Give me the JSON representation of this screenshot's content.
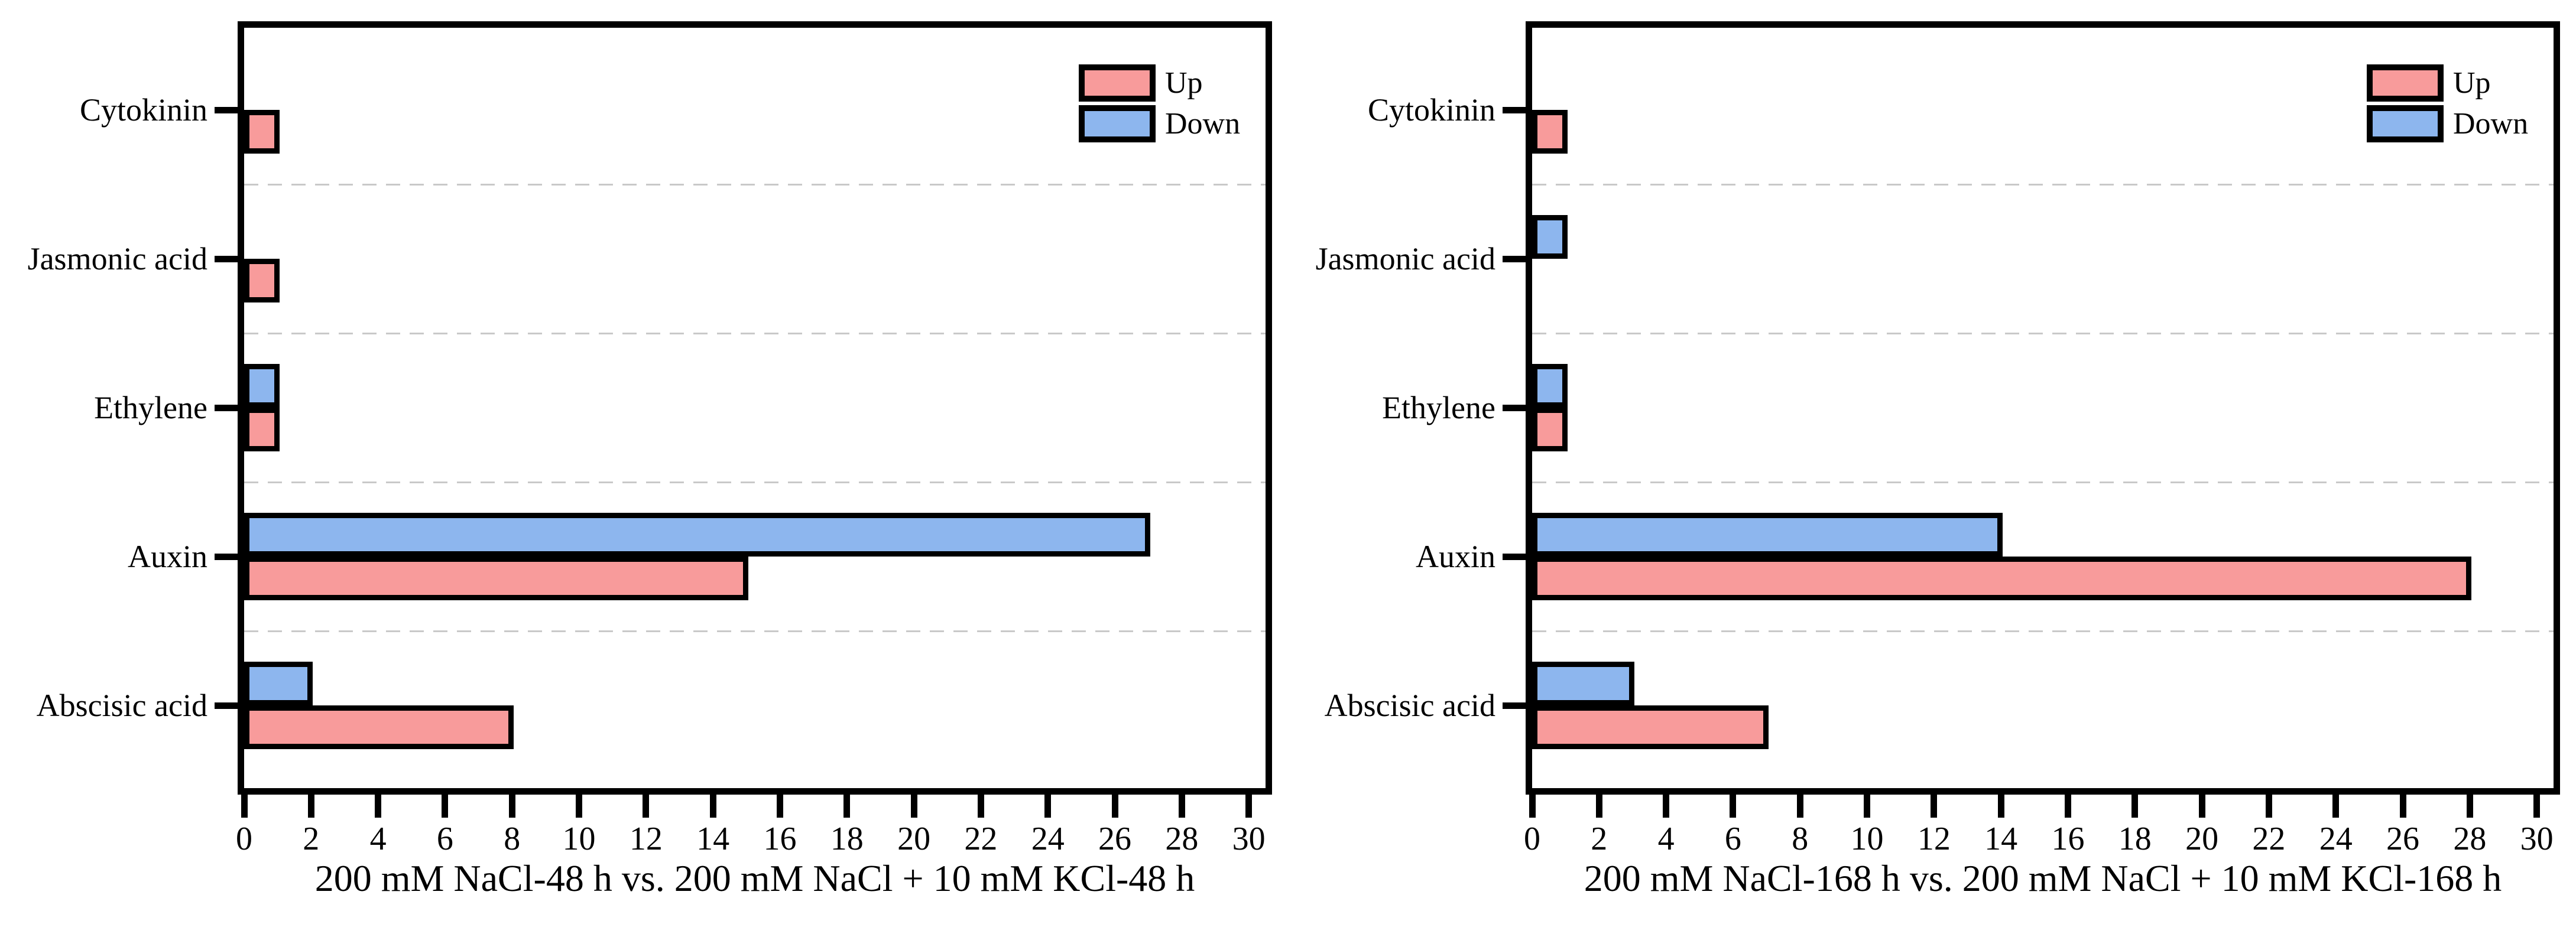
{
  "page": {
    "background": "#ffffff"
  },
  "colors": {
    "up": "#f89b9b",
    "down": "#8db6ee",
    "edge": "#000000",
    "axis": "#000000",
    "grid": "#c9c9c9",
    "text": "#000000"
  },
  "legend": {
    "position": "upper-right",
    "items": [
      {
        "label": "Up",
        "color_key": "up"
      },
      {
        "label": "Down",
        "color_key": "down"
      }
    ]
  },
  "chart_data": [
    {
      "type": "bar",
      "orientation": "horizontal",
      "title": "200 mM NaCl-48 h vs. 200 mM NaCl + 10 mM KCl-48 h",
      "category_order": "top-to-bottom",
      "categories": [
        "Cytokinin",
        "Jasmonic acid",
        "Ethylene",
        "Auxin",
        "Abscisic acid"
      ],
      "series": [
        {
          "name": "Up",
          "values": [
            1,
            1,
            1,
            15,
            8
          ]
        },
        {
          "name": "Down",
          "values": [
            0,
            0,
            1,
            27,
            2
          ]
        }
      ],
      "xlim": [
        0,
        30.5
      ],
      "xticks": [
        0,
        2,
        4,
        6,
        8,
        10,
        12,
        14,
        16,
        18,
        20,
        22,
        24,
        26,
        28,
        30
      ],
      "grid": "dashed horizontal lines between category groups",
      "legend_position": "upper-right"
    },
    {
      "type": "bar",
      "orientation": "horizontal",
      "title": "200 mM NaCl-168 h vs. 200 mM NaCl + 10 mM KCl-168 h",
      "category_order": "top-to-bottom",
      "categories": [
        "Cytokinin",
        "Jasmonic acid",
        "Ethylene",
        "Auxin",
        "Abscisic acid"
      ],
      "series": [
        {
          "name": "Up",
          "values": [
            1,
            0,
            1,
            28,
            7
          ]
        },
        {
          "name": "Down",
          "values": [
            0,
            1,
            1,
            14,
            3
          ]
        }
      ],
      "xlim": [
        0,
        30.5
      ],
      "xticks": [
        0,
        2,
        4,
        6,
        8,
        10,
        12,
        14,
        16,
        18,
        20,
        22,
        24,
        26,
        28,
        30
      ],
      "grid": "dashed horizontal lines between category groups",
      "legend_position": "upper-right"
    }
  ]
}
